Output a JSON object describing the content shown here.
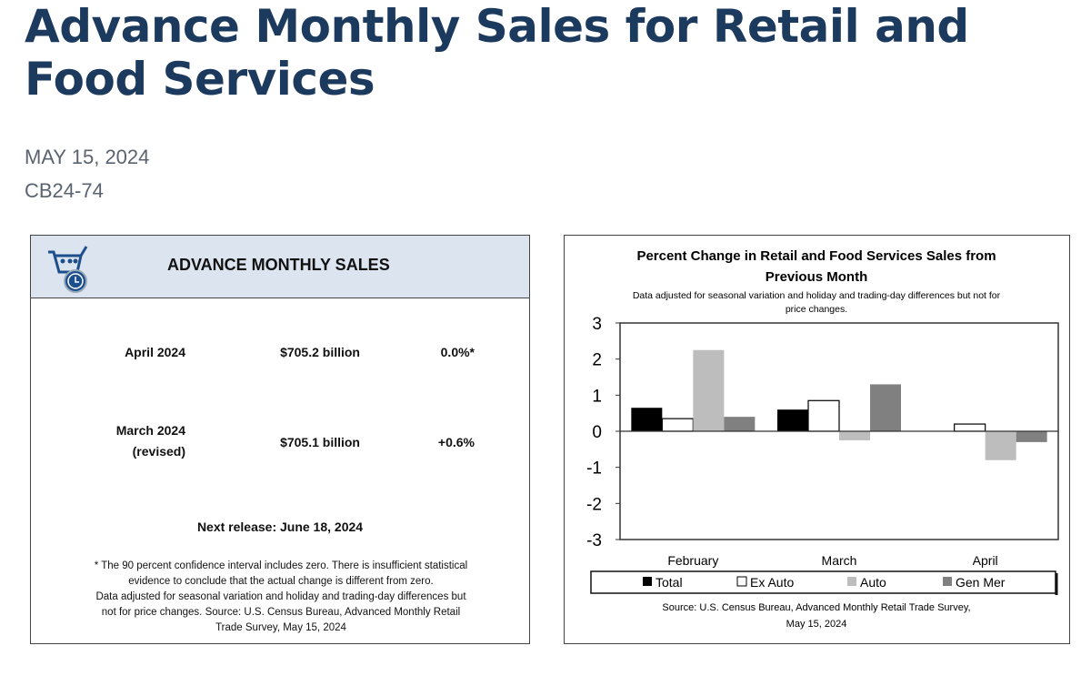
{
  "page": {
    "title": "Advance Monthly Sales for Retail and Food Services",
    "date": "MAY 15, 2024",
    "release_id": "CB24-74"
  },
  "summary": {
    "header": "ADVANCE MONTHLY SALES",
    "rows": [
      {
        "period": "April 2024",
        "period2": "",
        "value": "$705.2 billion",
        "change": "0.0%*"
      },
      {
        "period": "March 2024",
        "period2": "(revised)",
        "value": "$705.1 billion",
        "change": "+0.6%"
      }
    ],
    "next_release": "Next release: June 18, 2024",
    "footnote": [
      "* The 90 percent confidence interval includes zero. There is insufficient statistical",
      "evidence to conclude that the actual change is different from zero.",
      "Data adjusted for seasonal variation and holiday and trading-day differences but",
      "not for price changes. Source: U.S. Census Bureau, Advanced Monthly Retail",
      "Trade Survey, May 15, 2024"
    ]
  },
  "chart_data": {
    "type": "bar",
    "title": "Percent Change in Retail and Food Services Sales from Previous Month",
    "subtitle": "Data adjusted for seasonal variation and holiday and trading-day differences but not for price changes.",
    "categories": [
      "February",
      "March",
      "April"
    ],
    "ylim": [
      -3,
      3
    ],
    "yticks": [
      3,
      2,
      1,
      0,
      -1,
      -2,
      -3
    ],
    "series": [
      {
        "name": "Total",
        "color": "#000000",
        "values": [
          0.65,
          0.6,
          0.0
        ]
      },
      {
        "name": "Ex Auto",
        "color": "#ffffff",
        "values": [
          0.35,
          0.85,
          0.2
        ]
      },
      {
        "name": "Auto",
        "color": "#bdbdbd",
        "values": [
          2.25,
          -0.25,
          -0.8
        ]
      },
      {
        "name": "Gen Mer",
        "color": "#808080",
        "values": [
          0.4,
          1.3,
          -0.3
        ]
      }
    ],
    "legend": "bottom",
    "source": [
      "Source: U.S. Census Bureau, Advanced Monthly Retail Trade Survey,",
      "May 15, 2024"
    ]
  }
}
